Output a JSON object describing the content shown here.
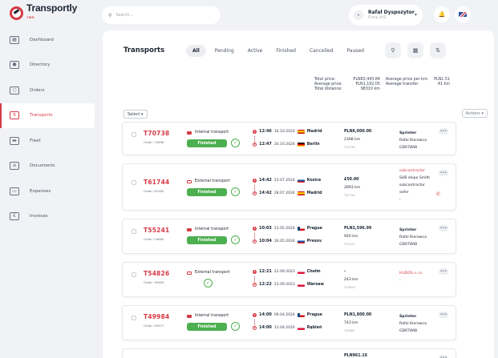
{
  "app": {
    "name": "Transportly",
    "sub": "TMS"
  },
  "search": {
    "placeholder": "Search..."
  },
  "user": {
    "name": "Rafał Dyspozytor",
    "company": "Firma XYZ"
  },
  "sidebar": {
    "items": [
      {
        "label": "Dashboard",
        "icon": "chart-icon"
      },
      {
        "label": "Directory",
        "icon": "users-icon"
      },
      {
        "label": "Orders",
        "icon": "coins-icon"
      },
      {
        "label": "Transports",
        "icon": "route-icon",
        "active": true
      },
      {
        "label": "Fleet",
        "icon": "truck-icon"
      },
      {
        "label": "Documents",
        "icon": "document-icon"
      },
      {
        "label": "Expenses",
        "icon": "wallet-icon"
      },
      {
        "label": "Invoices",
        "icon": "invoice-icon"
      }
    ]
  },
  "main": {
    "title": "Transports",
    "tabs": [
      "All",
      "Pending",
      "Active",
      "Finished",
      "Cancelled",
      "Paused"
    ],
    "totals": {
      "price_k": "Total price:",
      "price_v": "PLN83,443.84",
      "avg_k": "Average price:",
      "avg_v": "PLN1,192.05",
      "dist_k": "Total distance:",
      "dist_v": "98310 km",
      "ppk_k": "Average price per km:",
      "ppk_v": "PLN1.51",
      "avgt_k": "Average transfer:",
      "avgt_v": "41 km"
    },
    "select_label": "Select",
    "actions_label": "Actions"
  },
  "rows": [
    {
      "num": "T70738",
      "order": "Order: 70698",
      "type": "Internal transport",
      "status": "Finished",
      "t1": "12:46",
      "d1": "16.10.2024",
      "c1": "Madrid",
      "t2": "12:47",
      "d2": "20.10.2024",
      "c2": "Berlin",
      "price": "PLN6,000.00",
      "dist": "2368 km",
      "pid": "T70738",
      "v1": "Sprinter",
      "v2": "Rafal Kierowca",
      "v3": "GD678AB"
    },
    {
      "num": "T61744",
      "order": "Order: 61085",
      "type": "External transport",
      "status": "Finished",
      "t1": "14:42",
      "d1": "23.07.2024",
      "c1": "Kosice",
      "t2": "14:42",
      "d2": "28.07.2024",
      "c2": "Madrid",
      "price": "£50.00",
      "dist": "2893 km",
      "pid": "T61744",
      "v1": "subcontractor",
      "v2": "SUB ekipo Smith",
      "v3": "subcontractor",
      "v4": "sofer",
      "v5": "-"
    },
    {
      "num": "T55241",
      "order": "Order: 54660",
      "type": "Internal transport",
      "status": "Finished",
      "t1": "10:03",
      "d1": "23.05.2024",
      "c1": "Prague",
      "t2": "10:04",
      "d2": "26.05.2024",
      "c2": "Presov",
      "price": "PLN1,596.99",
      "dist": "920 km",
      "pid": "T55241",
      "v1": "Sprinter",
      "v2": "Rafal Kierowca",
      "v3": "GD678AB"
    },
    {
      "num": "T54826",
      "order": "Order: 39460",
      "type": "External transport",
      "status": "",
      "t1": "12:21",
      "d1": "22.09.2023",
      "c1": "Chełm",
      "t2": "12:22",
      "d2": "23.09.2023",
      "c2": "Warsaw",
      "price": "-",
      "dist": "243 km",
      "pid": "T54826",
      "v1": "HUDOS s.r.o.",
      "v2": "-"
    },
    {
      "num": "T49984",
      "order": "Order: 49927",
      "type": "Internal transport",
      "status": "Finished",
      "t1": "14:00",
      "d1": "09.04.2024",
      "c1": "Prague",
      "t2": "14:00",
      "d2": "12.04.2024",
      "c2": "Rąbień",
      "price": "PLN1,800.00",
      "dist": "743 km",
      "pid": "T49984",
      "v1": "Sprinter",
      "v2": "Rafal Kierowca",
      "v3": "GD678AB"
    },
    {
      "price": "PLN961.16"
    }
  ],
  "colors": {
    "accent": "#d63a45",
    "success": "#4caf50"
  }
}
